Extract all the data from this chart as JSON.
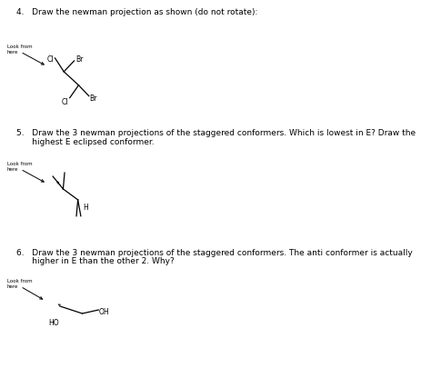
{
  "bg_color": "#ffffff",
  "q4_title": "4.   Draw the newman projection as shown (do not rotate):",
  "q5_title_1": "5.   Draw the 3 newman projections of the staggered conformers. Which is lowest in E? Draw the",
  "q5_title_2": "      highest E eclipsed conformer.",
  "q6_title_1": "6.   Draw the 3 newman projections of the staggered conformers. The anti conformer is actually",
  "q6_title_2": "      higher in E than the other 2. Why?",
  "look_from_here": "Look from\nhere",
  "figsize": [
    4.74,
    4.05
  ],
  "dpi": 100
}
